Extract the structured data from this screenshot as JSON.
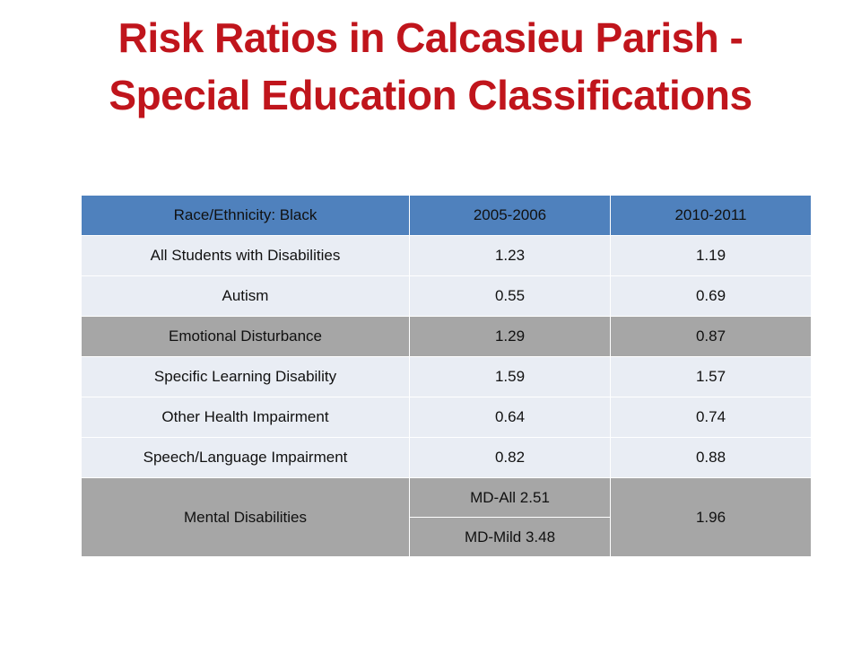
{
  "title": {
    "line1": "Risk Ratios in Calcasieu Parish -",
    "line2": "Special Education Classifications"
  },
  "table": {
    "headers": [
      "Race/Ethnicity:  Black",
      "2005-2006",
      "2010-2011"
    ],
    "rows": [
      {
        "label": "All Students with Disabilities",
        "v2006": "1.23",
        "v2011": "1.19"
      },
      {
        "label": "Autism",
        "v2006": "0.55",
        "v2011": "0.69"
      },
      {
        "label": "Emotional Disturbance",
        "v2006": "1.29",
        "v2011": "0.87"
      },
      {
        "label": "Specific Learning Disability",
        "v2006": "1.59",
        "v2011": "1.57"
      },
      {
        "label": "Other Health Impairment",
        "v2006": "0.64",
        "v2011": "0.74"
      },
      {
        "label": "Speech/Language Impairment",
        "v2006": "0.82",
        "v2011": "0.88"
      }
    ],
    "mental": {
      "label": "Mental Disabilities",
      "v2006_all": "MD-All 2.51",
      "v2006_mild": "MD-Mild 3.48",
      "v2011": "1.96"
    }
  },
  "colors": {
    "title": "#c0151c",
    "header": "#4f81bd",
    "row_light": "#e9edf4",
    "row_gray": "#a6a6a6"
  }
}
